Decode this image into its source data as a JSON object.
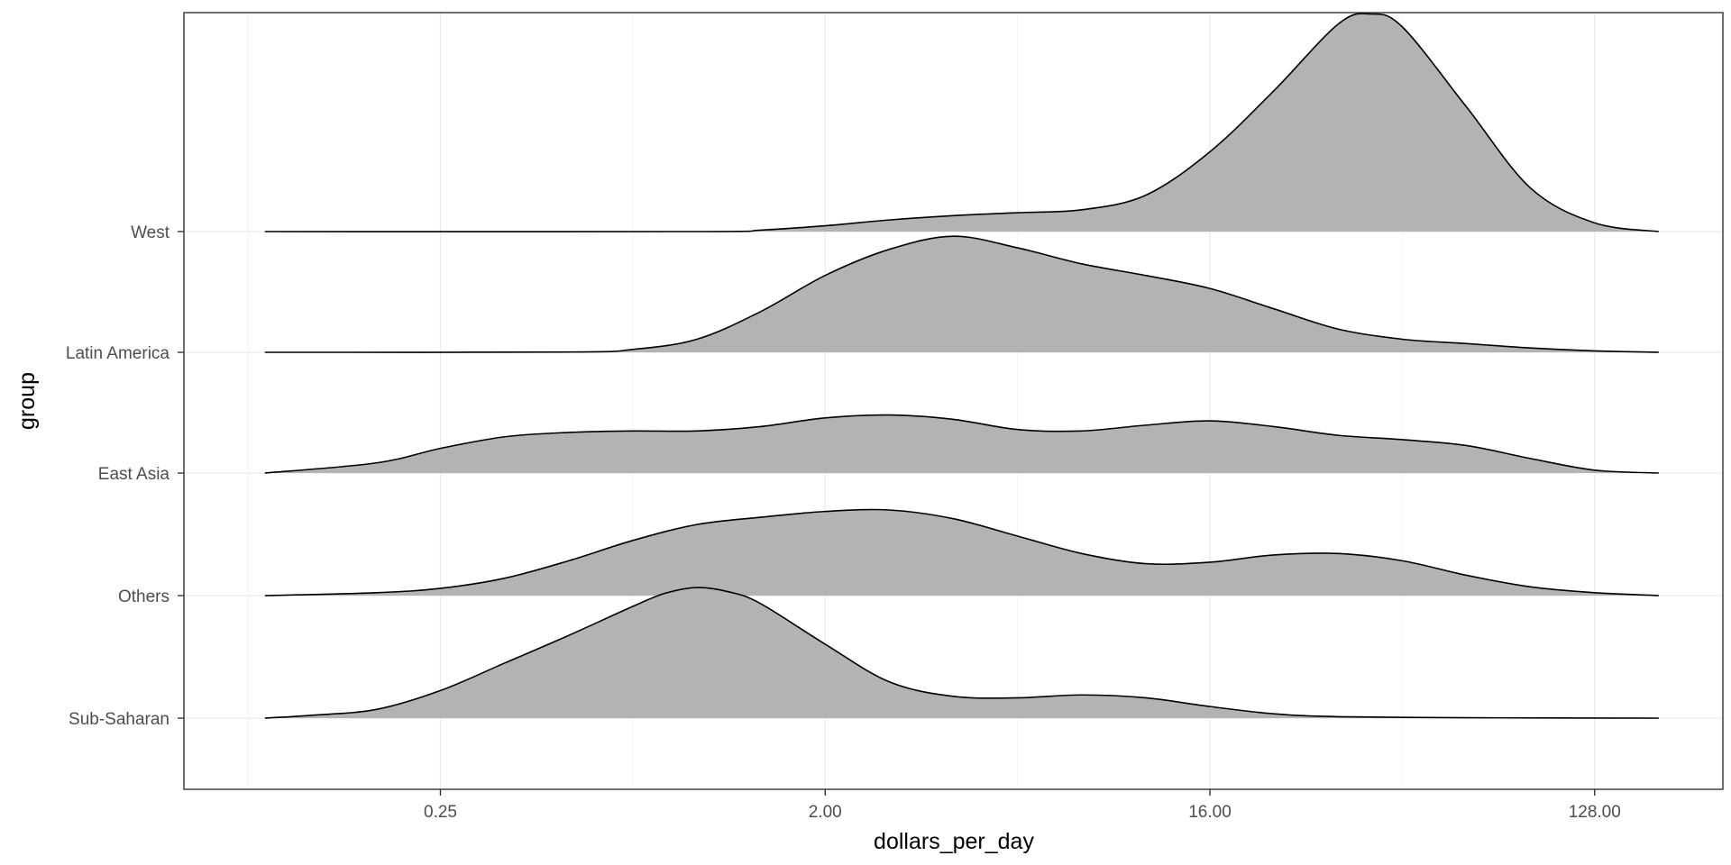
{
  "chart_data": {
    "type": "ridgeline",
    "title": "",
    "xlabel": "dollars_per_day",
    "ylabel": "group",
    "x_scale": "log2",
    "xlim": [
      0.0625,
      256
    ],
    "x_ticks": [
      0.25,
      2,
      16,
      128
    ],
    "x_tick_labels": [
      "0.25",
      "2.00",
      "16.00",
      "128.00"
    ],
    "grid": true,
    "legend": "none",
    "fill_color": "#b3b3b3",
    "line_color": "#000000",
    "groups": [
      "Sub-Saharan",
      "Others",
      "East Asia",
      "Latin America",
      "West"
    ],
    "series": [
      {
        "name": "Sub-Saharan",
        "x": [
          0.0968,
          0.125,
          0.177,
          0.25,
          0.354,
          0.5,
          0.707,
          0.841,
          1.0,
          1.19,
          1.41,
          2.0,
          2.83,
          4.0,
          5.66,
          8.0,
          11.3,
          16.0,
          22.6,
          32,
          64,
          100,
          181
        ],
        "density": [
          0.0,
          0.02,
          0.06,
          0.19,
          0.38,
          0.57,
          0.77,
          0.86,
          0.9,
          0.87,
          0.79,
          0.51,
          0.25,
          0.15,
          0.14,
          0.16,
          0.14,
          0.08,
          0.03,
          0.01,
          0.003,
          0.001,
          0.0
        ]
      },
      {
        "name": "Others",
        "x": [
          0.0968,
          0.177,
          0.25,
          0.354,
          0.5,
          0.707,
          1.0,
          1.41,
          2.0,
          2.83,
          4.0,
          5.66,
          8.0,
          11.3,
          16.0,
          22.6,
          32.0,
          45.3,
          64.0,
          90.5,
          128,
          181
        ],
        "density": [
          0.0,
          0.02,
          0.05,
          0.12,
          0.24,
          0.38,
          0.49,
          0.54,
          0.58,
          0.59,
          0.53,
          0.41,
          0.29,
          0.22,
          0.23,
          0.28,
          0.29,
          0.24,
          0.14,
          0.06,
          0.02,
          0.0
        ]
      },
      {
        "name": "East Asia",
        "x": [
          0.0968,
          0.177,
          0.25,
          0.354,
          0.5,
          0.707,
          1.0,
          1.41,
          2.0,
          2.83,
          4.0,
          5.66,
          8.0,
          11.3,
          16.0,
          22.6,
          32.0,
          45.3,
          64.0,
          90.5,
          128,
          181
        ],
        "density": [
          0.0,
          0.07,
          0.17,
          0.25,
          0.28,
          0.29,
          0.29,
          0.32,
          0.38,
          0.4,
          0.37,
          0.3,
          0.29,
          0.33,
          0.36,
          0.32,
          0.26,
          0.23,
          0.19,
          0.1,
          0.02,
          0.0
        ]
      },
      {
        "name": "Latin America",
        "x": [
          0.0968,
          0.5,
          0.707,
          1.0,
          1.41,
          2.0,
          2.83,
          4.0,
          5.66,
          8.0,
          11.3,
          16.0,
          22.6,
          32.0,
          45.3,
          64.0,
          90.5,
          128,
          181
        ],
        "density": [
          0.0,
          0.002,
          0.02,
          0.09,
          0.28,
          0.53,
          0.71,
          0.8,
          0.72,
          0.61,
          0.53,
          0.44,
          0.3,
          0.16,
          0.09,
          0.06,
          0.03,
          0.01,
          0.0
        ]
      },
      {
        "name": "West",
        "x": [
          0.0968,
          1.0,
          1.41,
          2.0,
          2.83,
          4.0,
          5.66,
          8.0,
          11.3,
          16.0,
          22.6,
          32.0,
          38.1,
          45.3,
          64.0,
          90.5,
          128,
          181
        ],
        "density": [
          0.0,
          0.0,
          0.01,
          0.04,
          0.08,
          0.11,
          0.13,
          0.15,
          0.25,
          0.55,
          0.97,
          1.43,
          1.5,
          1.41,
          0.86,
          0.3,
          0.06,
          0.0
        ]
      }
    ]
  }
}
